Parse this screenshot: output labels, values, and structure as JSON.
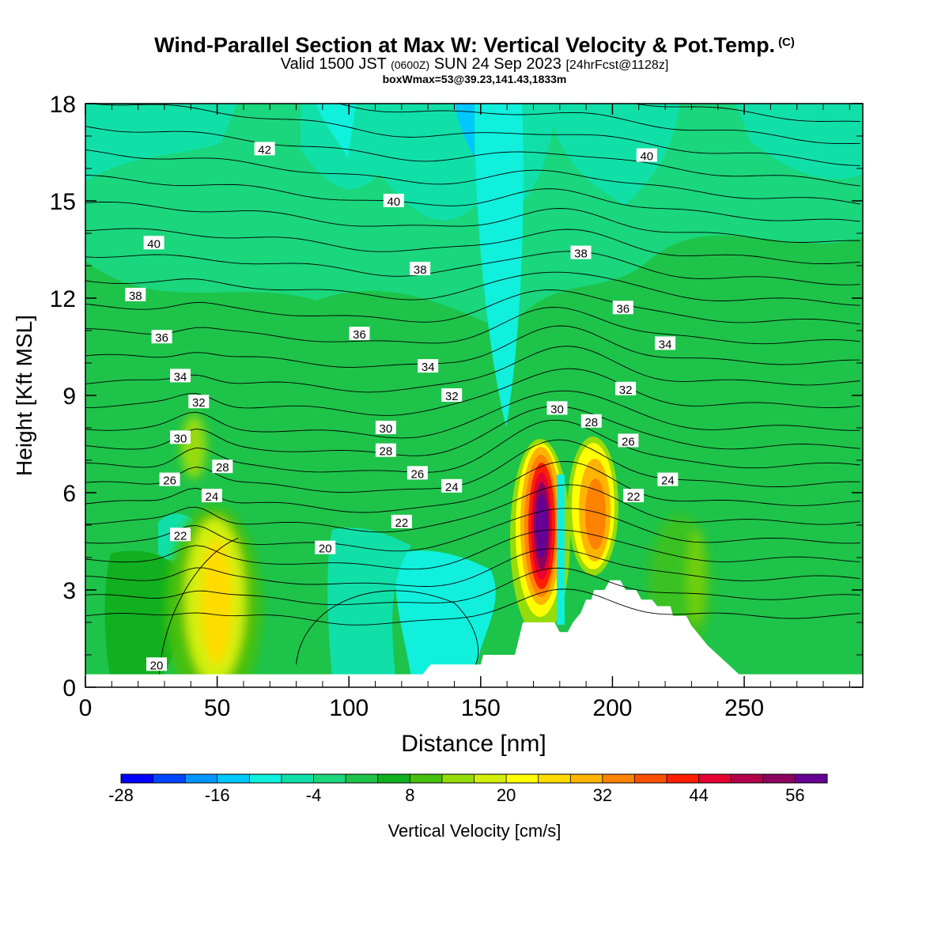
{
  "header": {
    "title": "Wind-Parallel Section at Max W: Vertical Velocity & Pot.Temp.",
    "copyright": "(C)",
    "valid_prefix": "Valid 1500 JST",
    "valid_utc": "(0600Z)",
    "valid_date": "SUN 24 Sep 2023",
    "forecast": "[24hrFcst@1128z]",
    "box_info": "boxWmax=53@39.23,141.43,1833m"
  },
  "colors": {
    "background_green": "#1ec34a",
    "light_green": "#1ad67c",
    "cyan_green": "#10e0a8",
    "cyan": "#10f0dc",
    "terrain_fill": "#ffffff"
  },
  "chart_data": {
    "type": "contour",
    "xlabel": "Distance [nm]",
    "ylabel": "Height [Kft MSL]",
    "xlim": [
      0,
      295
    ],
    "ylim": [
      0,
      18
    ],
    "x_ticks": [
      "0",
      "50",
      "100",
      "150",
      "200",
      "250"
    ],
    "y_ticks": [
      "0",
      "3",
      "6",
      "9",
      "12",
      "15",
      "18"
    ],
    "colorbar": {
      "label": "Vertical Velocity [cm/s]",
      "levels": [
        -28,
        -24,
        -20,
        -16,
        -12,
        -8,
        -4,
        0,
        4,
        8,
        12,
        16,
        20,
        24,
        28,
        32,
        36,
        40,
        44,
        48,
        52,
        56,
        60
      ],
      "tick_labels": [
        "-28",
        "-16",
        "-4",
        "8",
        "20",
        "32",
        "44",
        "56"
      ],
      "colors": [
        "#0000ff",
        "#0046ff",
        "#0096ff",
        "#00c8ff",
        "#10f0dc",
        "#10e0a8",
        "#1ad67c",
        "#1ec34a",
        "#10b020",
        "#46c00c",
        "#96dc0a",
        "#d2f00a",
        "#ffff00",
        "#ffdc00",
        "#ffb400",
        "#ff8200",
        "#ff5000",
        "#ff1e00",
        "#e60032",
        "#b4004b",
        "#8c005f",
        "#640096"
      ]
    },
    "terrain": [
      [
        0,
        0.4
      ],
      [
        128,
        0.4
      ],
      [
        131,
        0.7
      ],
      [
        150,
        0.7
      ],
      [
        151,
        1.0
      ],
      [
        163,
        1.0
      ],
      [
        166,
        2.0
      ],
      [
        178,
        2.0
      ],
      [
        180,
        1.7
      ],
      [
        183,
        1.7
      ],
      [
        185,
        2.0
      ],
      [
        188,
        2.3
      ],
      [
        190,
        2.7
      ],
      [
        192,
        2.7
      ],
      [
        193,
        3.0
      ],
      [
        197,
        3.0
      ],
      [
        199,
        3.3
      ],
      [
        203,
        3.3
      ],
      [
        205,
        3.0
      ],
      [
        209,
        3.0
      ],
      [
        211,
        2.7
      ],
      [
        215,
        2.7
      ],
      [
        217,
        2.5
      ],
      [
        222,
        2.5
      ],
      [
        223,
        2.2
      ],
      [
        228,
        2.2
      ],
      [
        230,
        1.9
      ],
      [
        233,
        1.6
      ],
      [
        236,
        1.3
      ],
      [
        240,
        1.0
      ],
      [
        244,
        0.7
      ],
      [
        248,
        0.4
      ],
      [
        295,
        0.4
      ]
    ],
    "updrafts": [
      {
        "x": 50,
        "y": 3.0,
        "max": 22
      },
      {
        "x": 42,
        "y": 7.0,
        "max": 16
      },
      {
        "x": 173,
        "y": 4.5,
        "max": 58
      },
      {
        "x": 194,
        "y": 5.5,
        "max": 36
      },
      {
        "x": 232,
        "y": 3.0,
        "max": 18
      }
    ],
    "theta_labels": [
      {
        "text": "20",
        "x": 27,
        "y": 0.7
      },
      {
        "text": "20",
        "x": 91,
        "y": 4.3
      },
      {
        "text": "22",
        "x": 36,
        "y": 4.7
      },
      {
        "text": "22",
        "x": 120,
        "y": 5.1
      },
      {
        "text": "22",
        "x": 208,
        "y": 5.9
      },
      {
        "text": "24",
        "x": 48,
        "y": 5.9
      },
      {
        "text": "24",
        "x": 139,
        "y": 6.2
      },
      {
        "text": "24",
        "x": 221,
        "y": 6.4
      },
      {
        "text": "26",
        "x": 32,
        "y": 6.4
      },
      {
        "text": "26",
        "x": 126,
        "y": 6.6
      },
      {
        "text": "26",
        "x": 206,
        "y": 7.6
      },
      {
        "text": "28",
        "x": 52,
        "y": 6.8
      },
      {
        "text": "28",
        "x": 114,
        "y": 7.3
      },
      {
        "text": "28",
        "x": 192,
        "y": 8.2
      },
      {
        "text": "30",
        "x": 36,
        "y": 7.7
      },
      {
        "text": "30",
        "x": 114,
        "y": 8.0
      },
      {
        "text": "30",
        "x": 179,
        "y": 8.6
      },
      {
        "text": "32",
        "x": 43,
        "y": 8.8
      },
      {
        "text": "32",
        "x": 139,
        "y": 9.0
      },
      {
        "text": "32",
        "x": 205,
        "y": 9.2
      },
      {
        "text": "34",
        "x": 36,
        "y": 9.6
      },
      {
        "text": "34",
        "x": 130,
        "y": 9.9
      },
      {
        "text": "34",
        "x": 220,
        "y": 10.6
      },
      {
        "text": "36",
        "x": 29,
        "y": 10.8
      },
      {
        "text": "36",
        "x": 104,
        "y": 10.9
      },
      {
        "text": "36",
        "x": 204,
        "y": 11.7
      },
      {
        "text": "38",
        "x": 19,
        "y": 12.1
      },
      {
        "text": "38",
        "x": 127,
        "y": 12.9
      },
      {
        "text": "38",
        "x": 188,
        "y": 13.4
      },
      {
        "text": "40",
        "x": 26,
        "y": 13.7
      },
      {
        "text": "40",
        "x": 117,
        "y": 15.0
      },
      {
        "text": "40",
        "x": 213,
        "y": 16.4
      },
      {
        "text": "42",
        "x": 68,
        "y": 16.6
      }
    ]
  }
}
